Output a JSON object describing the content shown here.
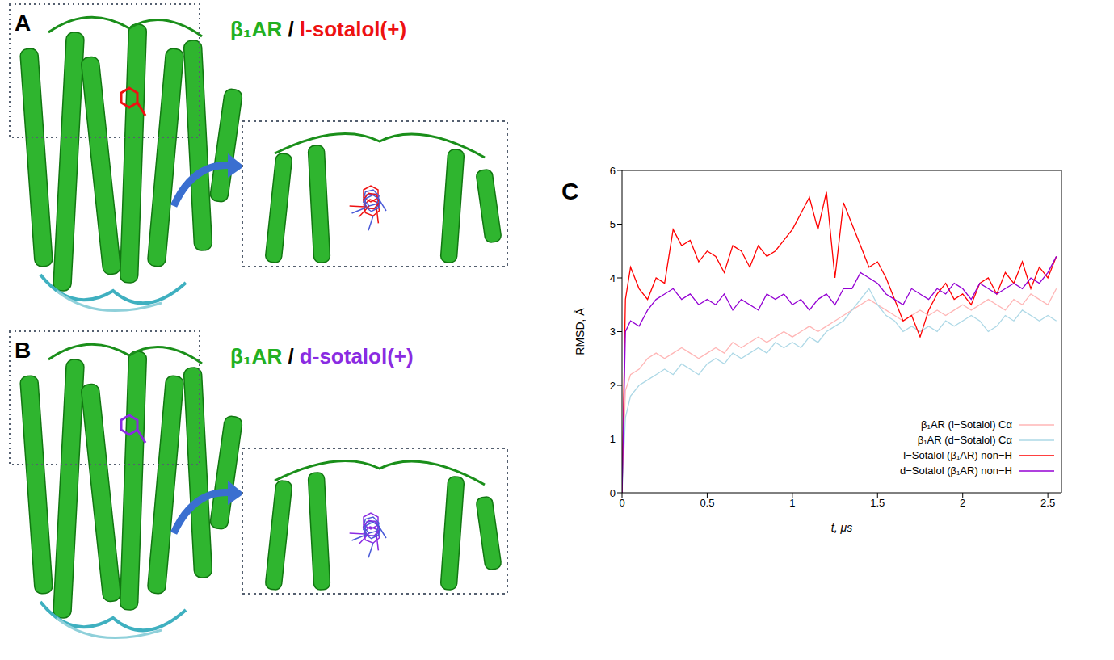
{
  "panels": [
    {
      "label": "A",
      "title": [
        {
          "text": "β₁AR",
          "color": "#22b022"
        },
        {
          "text": "/",
          "color": "#000000"
        },
        {
          "text": "l-sotalol(+)",
          "color": "#ee1111"
        }
      ]
    },
    {
      "label": "B",
      "title": [
        {
          "text": "β₁AR",
          "color": "#22b022"
        },
        {
          "text": "/",
          "color": "#000000"
        },
        {
          "text": "d-sotalol(+)",
          "color": "#8a2be2"
        }
      ]
    }
  ],
  "chart_label": "C",
  "chart_data": {
    "type": "line",
    "x_label": "t, μs",
    "y_label": "RMSD, Å",
    "xlim": [
      0,
      2.58
    ],
    "xticks": [
      0,
      0.5,
      1,
      1.5,
      2,
      2.5
    ],
    "ylim": [
      0,
      6
    ],
    "yticks": [
      0,
      1,
      2,
      3,
      4,
      5,
      6
    ],
    "legend": "lower right",
    "x": [
      0,
      0.02,
      0.05,
      0.1,
      0.15,
      0.2,
      0.25,
      0.3,
      0.35,
      0.4,
      0.45,
      0.5,
      0.55,
      0.6,
      0.65,
      0.7,
      0.75,
      0.8,
      0.85,
      0.9,
      0.95,
      1.0,
      1.05,
      1.1,
      1.15,
      1.2,
      1.25,
      1.3,
      1.35,
      1.4,
      1.45,
      1.5,
      1.55,
      1.6,
      1.65,
      1.7,
      1.75,
      1.8,
      1.85,
      1.9,
      1.95,
      2.0,
      2.05,
      2.1,
      2.15,
      2.2,
      2.25,
      2.3,
      2.35,
      2.4,
      2.45,
      2.5,
      2.55
    ],
    "series": [
      {
        "name": "β₁AR (l−Sotalol) Cα",
        "color": "#ffb6b6",
        "values": [
          0,
          1.9,
          2.2,
          2.3,
          2.5,
          2.6,
          2.5,
          2.6,
          2.7,
          2.6,
          2.5,
          2.6,
          2.7,
          2.6,
          2.8,
          2.7,
          2.8,
          2.9,
          2.8,
          2.9,
          3.0,
          2.9,
          3.0,
          3.1,
          3.0,
          3.1,
          3.2,
          3.3,
          3.4,
          3.5,
          3.6,
          3.5,
          3.4,
          3.3,
          3.2,
          3.3,
          3.4,
          3.3,
          3.4,
          3.3,
          3.4,
          3.5,
          3.4,
          3.5,
          3.6,
          3.5,
          3.4,
          3.6,
          3.5,
          3.7,
          3.6,
          3.5,
          3.8
        ]
      },
      {
        "name": "β₁AR (d−Sotalol) Cα",
        "color": "#add8e6",
        "values": [
          0,
          1.4,
          1.8,
          2.0,
          2.1,
          2.2,
          2.3,
          2.2,
          2.4,
          2.3,
          2.2,
          2.4,
          2.5,
          2.4,
          2.6,
          2.5,
          2.6,
          2.7,
          2.6,
          2.8,
          2.7,
          2.8,
          2.7,
          2.9,
          2.8,
          3.0,
          3.1,
          3.2,
          3.4,
          3.6,
          3.8,
          3.5,
          3.3,
          3.2,
          3.0,
          3.1,
          3.0,
          3.1,
          3.0,
          3.2,
          3.1,
          3.2,
          3.3,
          3.2,
          3.0,
          3.1,
          3.3,
          3.2,
          3.4,
          3.3,
          3.2,
          3.3,
          3.2
        ]
      },
      {
        "name": "l−Sotalol (β₁AR) non−H",
        "color": "#ff0000",
        "values": [
          0,
          3.6,
          4.2,
          3.8,
          3.6,
          4.0,
          3.9,
          4.9,
          4.6,
          4.7,
          4.3,
          4.5,
          4.4,
          4.1,
          4.6,
          4.5,
          4.2,
          4.6,
          4.4,
          4.5,
          4.7,
          4.9,
          5.2,
          5.5,
          4.9,
          5.6,
          4.0,
          5.4,
          5.0,
          4.6,
          4.2,
          4.3,
          4.0,
          3.6,
          3.2,
          3.3,
          2.9,
          3.4,
          3.7,
          3.9,
          3.6,
          3.7,
          3.5,
          3.9,
          4.0,
          3.7,
          4.1,
          3.9,
          4.3,
          3.8,
          4.2,
          4.0,
          4.4
        ]
      },
      {
        "name": "d−Sotalol (β₁AR) non−H",
        "color": "#9400d3",
        "values": [
          0,
          3.0,
          3.2,
          3.1,
          3.4,
          3.6,
          3.7,
          3.8,
          3.6,
          3.7,
          3.5,
          3.6,
          3.5,
          3.7,
          3.4,
          3.6,
          3.5,
          3.4,
          3.7,
          3.6,
          3.7,
          3.5,
          3.6,
          3.4,
          3.6,
          3.7,
          3.5,
          3.8,
          3.8,
          4.1,
          4.0,
          3.9,
          3.7,
          3.6,
          3.5,
          3.8,
          3.7,
          3.6,
          3.8,
          3.7,
          3.9,
          3.8,
          3.6,
          3.9,
          3.8,
          3.7,
          3.8,
          3.9,
          3.8,
          4.0,
          3.9,
          4.1,
          4.4
        ]
      }
    ]
  }
}
